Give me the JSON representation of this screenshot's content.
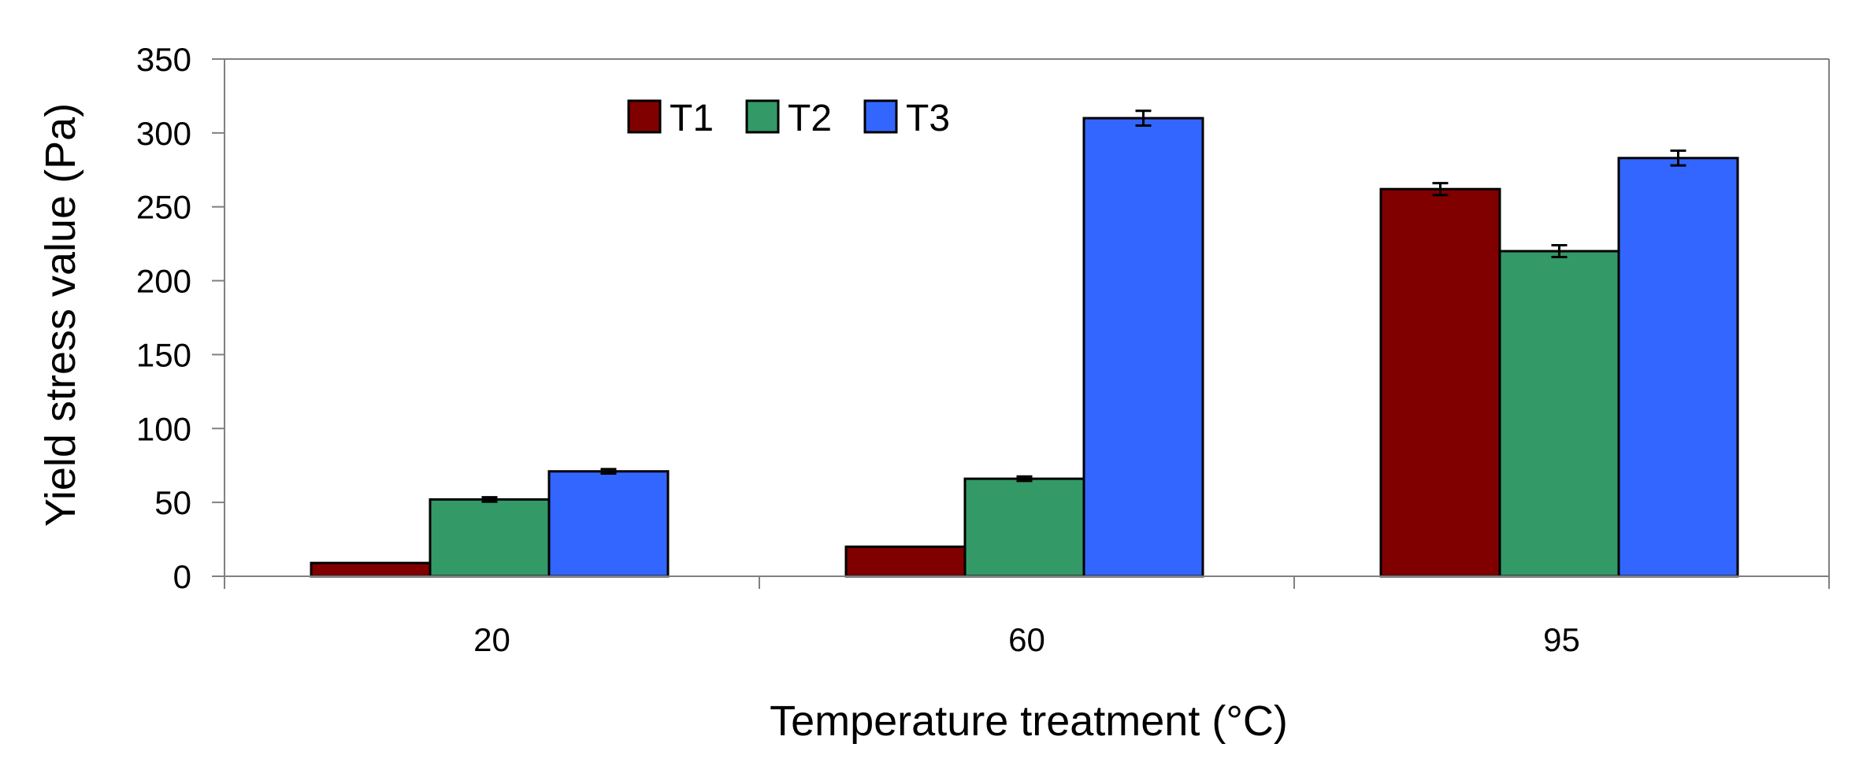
{
  "chart_data": {
    "type": "bar",
    "title": "",
    "xlabel": "Temperature treatment (°C)",
    "ylabel": "Yield stress value (Pa)",
    "categories": [
      "20",
      "60",
      "95"
    ],
    "ylim": [
      0,
      350
    ],
    "yticks": [
      0,
      50,
      100,
      150,
      200,
      250,
      300,
      350
    ],
    "grid": false,
    "legend_position": "top-left-inside",
    "series": [
      {
        "name": "T1",
        "color": "#800000",
        "values": [
          9,
          20,
          262
        ],
        "errors": [
          null,
          null,
          4
        ]
      },
      {
        "name": "T2",
        "color": "#339966",
        "values": [
          52,
          66,
          220
        ],
        "errors": [
          1.5,
          1.5,
          4
        ]
      },
      {
        "name": "T3",
        "color": "#3366FF",
        "values": [
          71,
          310,
          283
        ],
        "errors": [
          1.5,
          5,
          5
        ]
      }
    ]
  }
}
